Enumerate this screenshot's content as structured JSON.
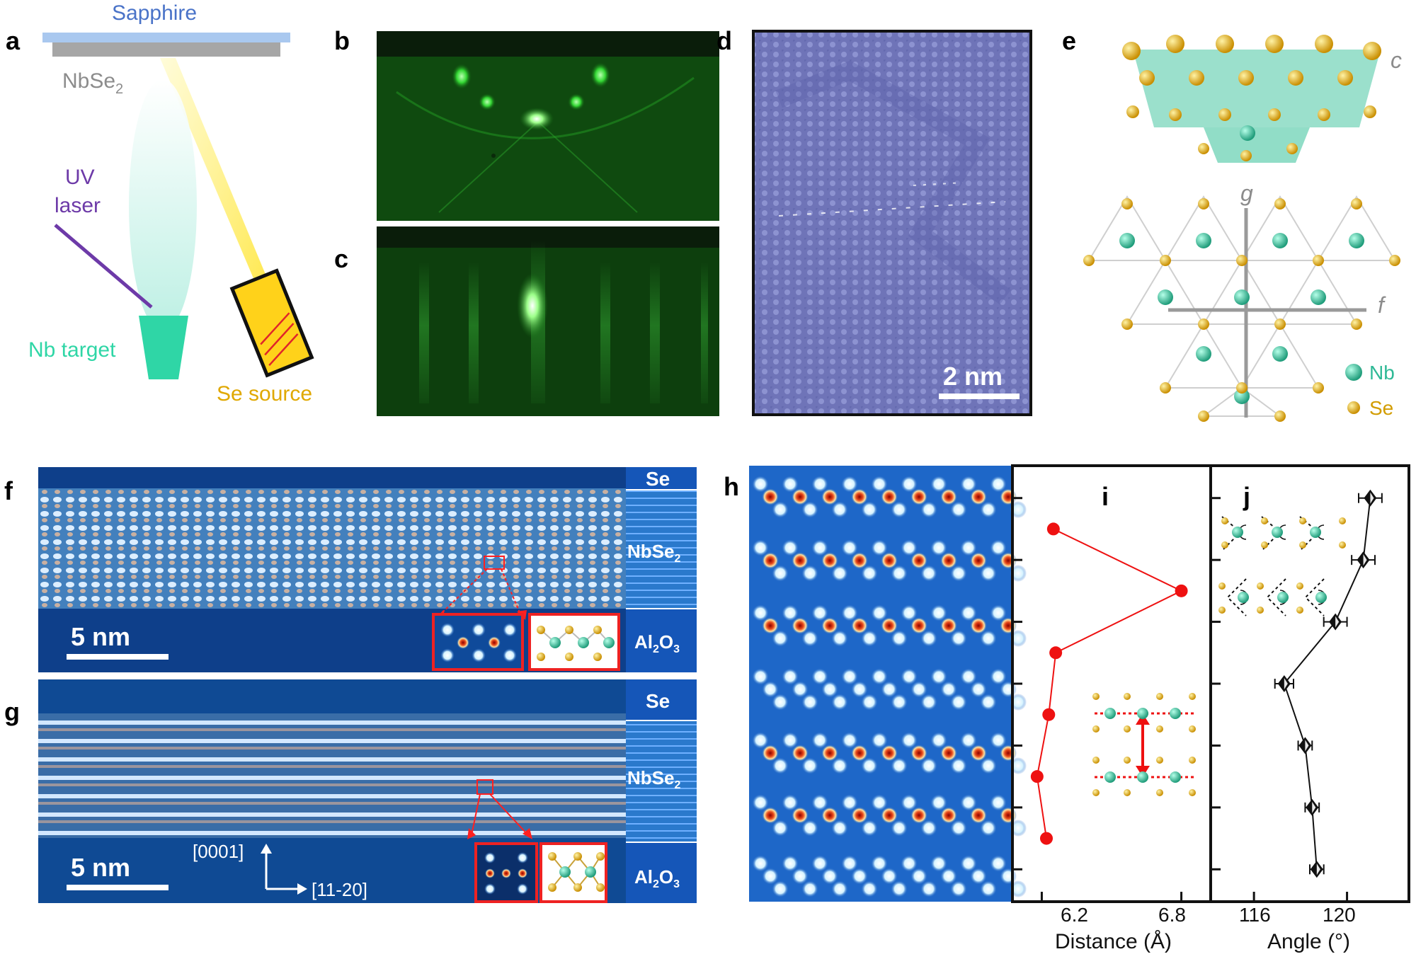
{
  "panel_letters": {
    "a": "a",
    "b": "b",
    "c": "c",
    "d": "d",
    "e": "e",
    "f": "f",
    "g": "g",
    "h": "h",
    "i": "i",
    "j": "j"
  },
  "panel_a": {
    "substrate_label": "Sapphire",
    "film_label_main": "NbSe",
    "film_label_sub": "2",
    "laser_label_line1": "UV",
    "laser_label_line2": "laser",
    "target_label": "Nb target",
    "source_label": "Se source"
  },
  "panel_d": {
    "scale_label": "2 nm"
  },
  "panel_e": {
    "axis_c": "c",
    "axis_g": "g",
    "axis_f": "f",
    "legend_nb": "Nb",
    "legend_se": "Se"
  },
  "panel_f": {
    "scale_label": "5 nm",
    "layer_top": "Se",
    "layer_mid_main": "NbSe",
    "layer_mid_sub": "2",
    "layer_bot_main": "Al",
    "layer_bot_sub1": "2",
    "layer_bot_o": "O",
    "layer_bot_sub2": "3"
  },
  "panel_g": {
    "scale_label": "5 nm",
    "dir_vertical": "[0001]",
    "dir_horizontal": "[11-20]",
    "layer_top": "Se",
    "layer_mid_main": "NbSe",
    "layer_mid_sub": "2",
    "layer_bot_main": "Al",
    "layer_bot_sub1": "2",
    "layer_bot_o": "O",
    "layer_bot_sub2": "3"
  },
  "colors": {
    "rheed_green": "#1aa81a",
    "stm_blue": "#6f74b8",
    "haadf_blue": "#1a4f9c",
    "nb_teal": "#2fbf9a",
    "se_gold": "#e0a800",
    "plot_red": "#ee1111",
    "plot_black": "#111111"
  },
  "chart_data": [
    {
      "type": "line",
      "panel": "i",
      "xlabel": "Distance (Å)",
      "xticks": [
        "6.2",
        "6.8"
      ],
      "xlim": [
        6.08,
        6.92
      ],
      "ylim": [
        0.5,
        7.5
      ],
      "y_ticks": 7,
      "series": [
        {
          "color": "#ee1111",
          "marker": "circle",
          "points": [
            {
              "x": 6.25,
              "y": 6.5
            },
            {
              "x": 6.8,
              "y": 5.5
            },
            {
              "x": 6.26,
              "y": 4.5
            },
            {
              "x": 6.23,
              "y": 3.5
            },
            {
              "x": 6.18,
              "y": 2.5
            },
            {
              "x": 6.22,
              "y": 1.5
            }
          ]
        }
      ]
    },
    {
      "type": "line",
      "panel": "j",
      "xlabel": "Angle (°)",
      "xticks": [
        "116",
        "120"
      ],
      "xlim": [
        114.2,
        122.6
      ],
      "ylim": [
        0.5,
        7.5
      ],
      "y_ticks": 7,
      "series": [
        {
          "color": "#111111",
          "marker": "diamond",
          "points": [
            {
              "x": 121.0,
              "y": 7,
              "err": 0.5
            },
            {
              "x": 120.7,
              "y": 6,
              "err": 0.5
            },
            {
              "x": 119.5,
              "y": 5,
              "err": 0.5
            },
            {
              "x": 117.3,
              "y": 4,
              "err": 0.4
            },
            {
              "x": 118.2,
              "y": 3,
              "err": 0.3
            },
            {
              "x": 118.5,
              "y": 2,
              "err": 0.3
            },
            {
              "x": 118.7,
              "y": 1,
              "err": 0.3
            }
          ]
        }
      ]
    }
  ]
}
